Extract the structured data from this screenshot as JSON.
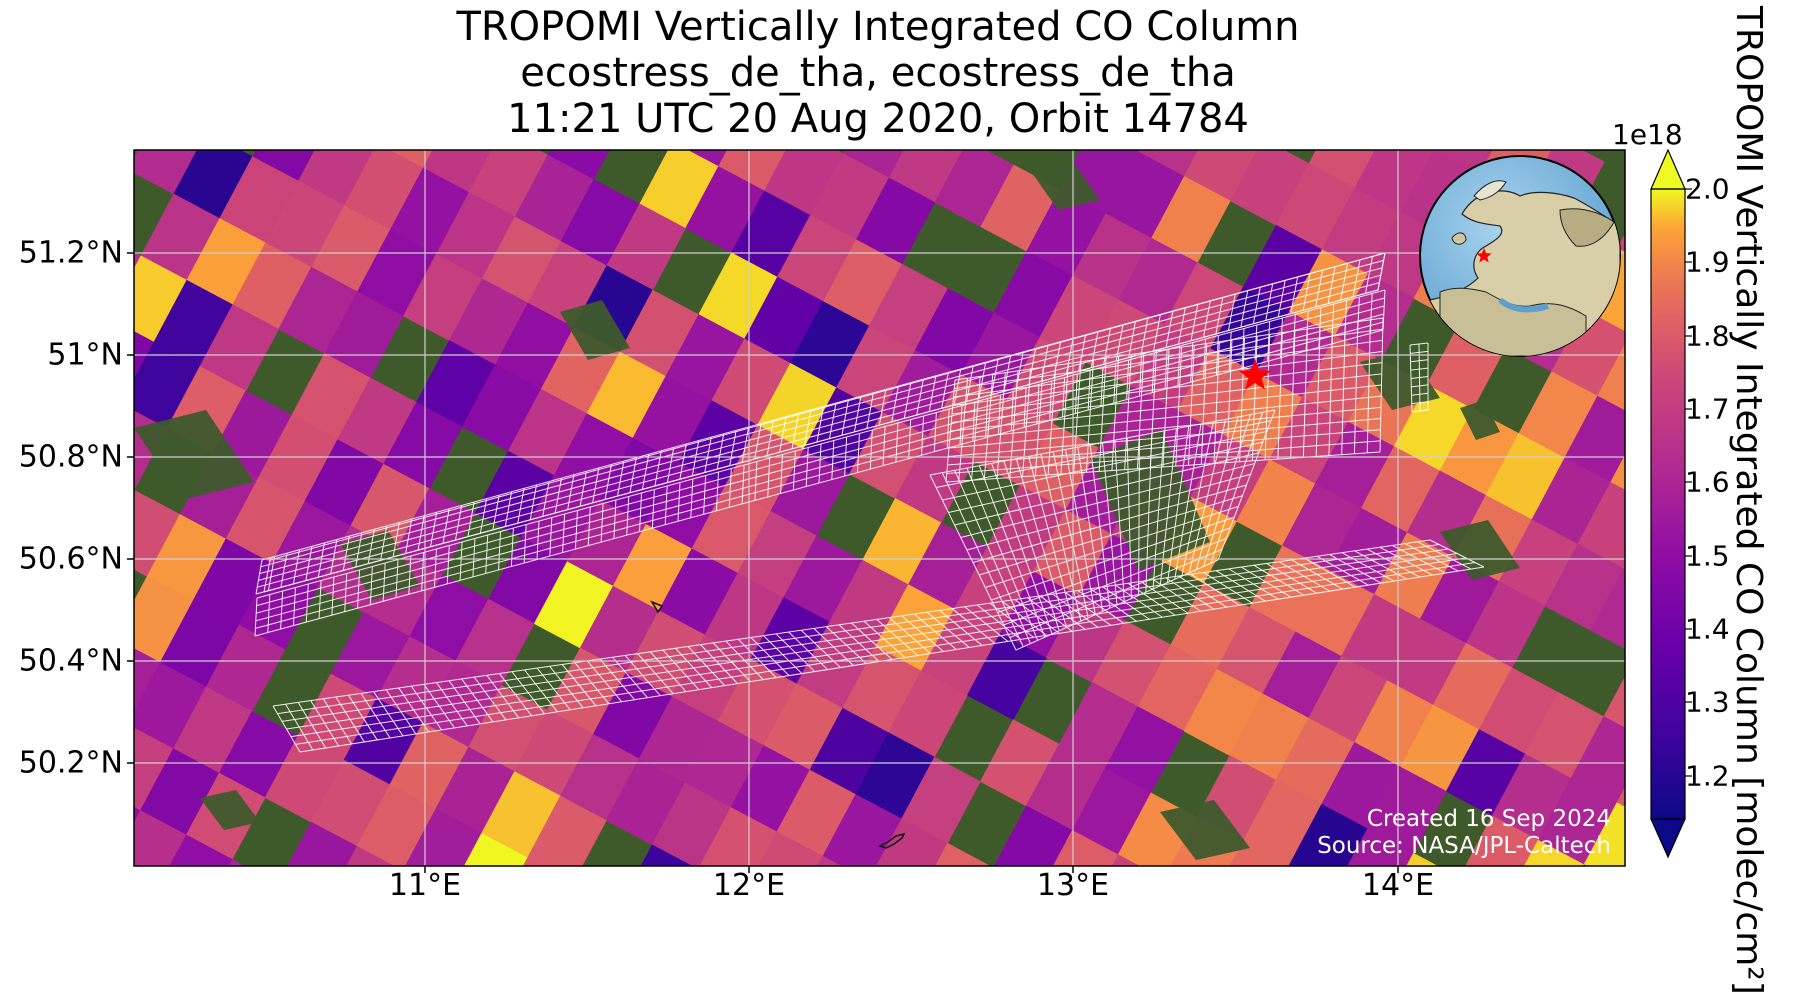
{
  "title": {
    "line1": "TROPOMI Vertically Integrated CO Column",
    "line2": "ecostress_de_tha, ecostress_de_tha",
    "line3": "11:21 UTC 20 Aug 2020, Orbit 14784"
  },
  "axes": {
    "lat_labels": [
      "51.2°N",
      "51°N",
      "50.8°N",
      "50.6°N",
      "50.4°N",
      "50.2°N"
    ],
    "lon_labels": [
      "11°E",
      "12°E",
      "13°E",
      "14°E"
    ]
  },
  "colorbar": {
    "exponent": "1e18",
    "ticks": [
      "2.0",
      "1.9",
      "1.8",
      "1.7",
      "1.6",
      "1.5",
      "1.4",
      "1.3",
      "1.2"
    ],
    "label": "TROPOMI Vertically Integrated CO Column [molec/cm²]",
    "colormap": "plasma",
    "extend": "both"
  },
  "credits": {
    "created": "Created 16 Sep 2024",
    "source": "Source: NASA/JPL-Caltech"
  },
  "colors": {
    "star": "#ff0000",
    "grid": "#cccccc",
    "footprint_grid": "#ffffff"
  }
}
